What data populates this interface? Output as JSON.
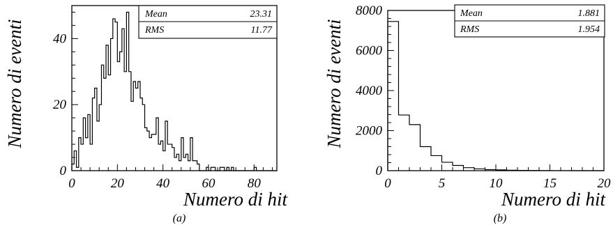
{
  "chart_data": [
    {
      "type": "bar",
      "caption": "(a)",
      "xlabel": "Numero di hit",
      "ylabel": "Numero di eventi",
      "xlim": [
        0,
        90
      ],
      "ylim": [
        0,
        50
      ],
      "xticks": [
        "0",
        "20",
        "40",
        "60",
        "80"
      ],
      "yticks": [
        "0",
        "20",
        "40"
      ],
      "stats": [
        {
          "label": "Mean",
          "value": "23.31"
        },
        {
          "label": "RMS",
          "value": "11.77"
        }
      ],
      "x": [
        0,
        1,
        2,
        3,
        4,
        5,
        6,
        7,
        8,
        9,
        10,
        11,
        12,
        13,
        14,
        15,
        16,
        17,
        18,
        19,
        20,
        21,
        22,
        23,
        24,
        25,
        26,
        27,
        28,
        29,
        30,
        31,
        32,
        33,
        34,
        35,
        36,
        37,
        38,
        39,
        40,
        41,
        42,
        43,
        44,
        45,
        46,
        47,
        48,
        49,
        50,
        51,
        52,
        53,
        54,
        55,
        56,
        57,
        58,
        59,
        60,
        61,
        62,
        63,
        64,
        65,
        66,
        67,
        68,
        69,
        70,
        71,
        72,
        73,
        74,
        75,
        76,
        77,
        78,
        79,
        80,
        81,
        82,
        83,
        84,
        85,
        86,
        87,
        88,
        89
      ],
      "values": [
        2,
        6,
        1,
        10,
        8,
        16,
        10,
        17,
        8,
        22,
        25,
        15,
        20,
        32,
        28,
        38,
        29,
        40,
        46,
        45,
        33,
        36,
        43,
        30,
        48,
        30,
        21,
        27,
        25,
        27,
        22,
        20,
        13,
        12,
        10,
        11,
        11,
        16,
        8,
        9,
        6,
        15,
        8,
        8,
        7,
        4,
        5,
        3,
        10,
        4,
        5,
        3,
        10,
        3,
        3,
        2,
        0,
        0,
        0,
        1,
        0,
        1,
        1,
        0,
        0,
        1,
        1,
        0,
        1,
        0,
        1,
        0,
        0,
        0,
        0,
        0,
        0,
        0,
        0,
        0,
        1,
        0,
        0,
        0,
        0,
        0,
        0,
        0,
        0,
        0
      ]
    },
    {
      "type": "bar",
      "caption": "(b)",
      "xlabel": "Numero di hit",
      "ylabel": "Numero di eventi",
      "xlim": [
        0,
        20
      ],
      "ylim": [
        0,
        8000
      ],
      "xticks": [
        "0",
        "5",
        "10",
        "15",
        "20"
      ],
      "yticks": [
        "0",
        "2000",
        "4000",
        "6000",
        "8000"
      ],
      "stats": [
        {
          "label": "Mean",
          "value": "1.881"
        },
        {
          "label": "RMS",
          "value": "1.954"
        }
      ],
      "x": [
        0,
        1,
        2,
        3,
        4,
        5,
        6,
        7,
        8,
        9,
        10,
        11,
        12,
        13,
        14,
        15,
        16,
        17,
        18,
        19
      ],
      "values": [
        7450,
        2780,
        2300,
        1200,
        750,
        420,
        260,
        150,
        90,
        55,
        40,
        22,
        12,
        8,
        5,
        3,
        2,
        1,
        1,
        0
      ]
    }
  ]
}
